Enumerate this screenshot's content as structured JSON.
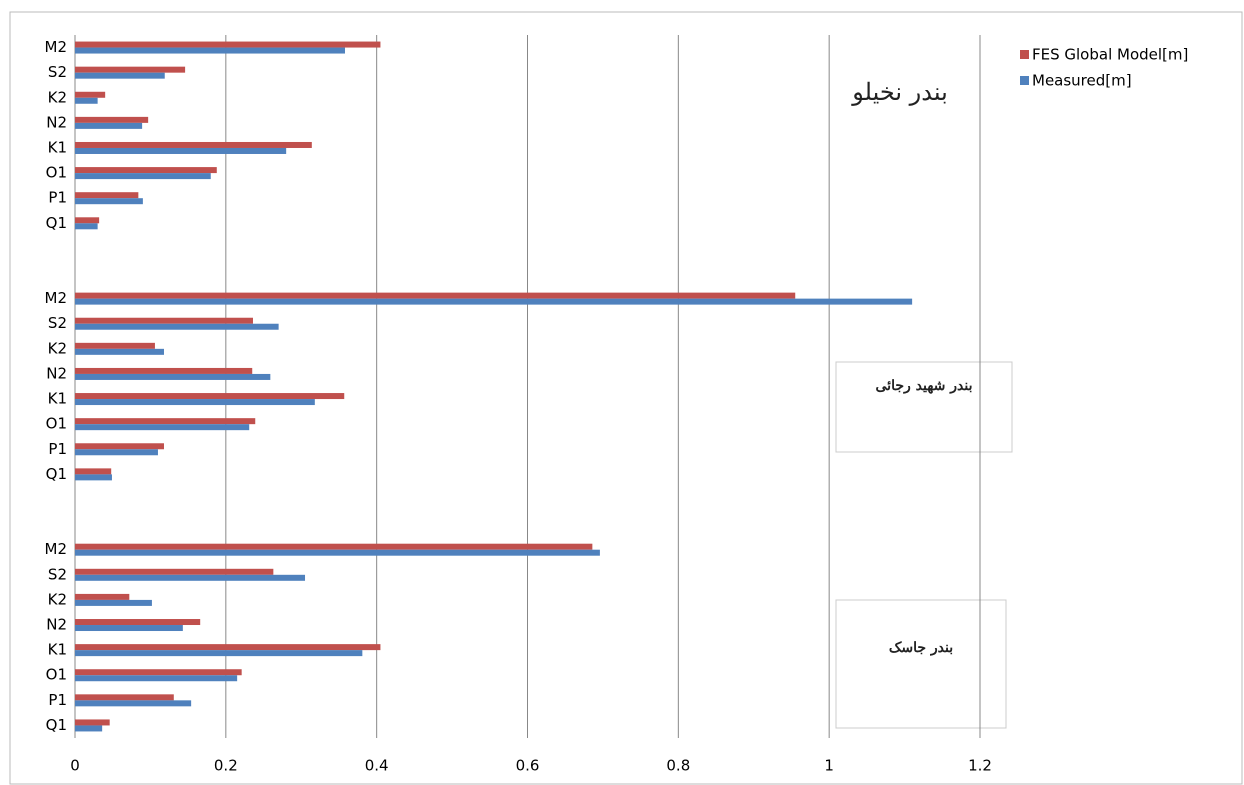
{
  "chart_data": {
    "type": "hbar",
    "categories": [
      "M2",
      "S2",
      "K2",
      "N2",
      "K1",
      "O1",
      "P1",
      "Q1",
      null,
      null,
      "M2",
      "S2",
      "K2",
      "N2",
      "K1",
      "O1",
      "P1",
      "Q1",
      null,
      null,
      "M2",
      "S2",
      "K2",
      "N2",
      "K1",
      "O1",
      "P1",
      "Q1"
    ],
    "series": [
      {
        "name": "FES Global Model[m]",
        "color": "#c0504d",
        "values": [
          0.405,
          0.146,
          0.04,
          0.097,
          0.314,
          0.188,
          0.084,
          0.032,
          null,
          null,
          0.955,
          0.236,
          0.106,
          0.235,
          0.357,
          0.239,
          0.118,
          0.048,
          null,
          null,
          0.686,
          0.263,
          0.072,
          0.166,
          0.405,
          0.221,
          0.131,
          0.046
        ]
      },
      {
        "name": "Measured[m]",
        "color": "#4f81bd",
        "values": [
          0.358,
          0.119,
          0.03,
          0.089,
          0.28,
          0.18,
          0.09,
          0.03,
          null,
          null,
          1.11,
          0.27,
          0.118,
          0.259,
          0.318,
          0.231,
          0.11,
          0.049,
          null,
          null,
          0.696,
          0.305,
          0.102,
          0.143,
          0.381,
          0.215,
          0.154,
          0.036
        ]
      }
    ],
    "xlim": [
      0,
      1.2
    ],
    "xticks": [
      0,
      0.2,
      0.4,
      0.6,
      0.8,
      1,
      1.2
    ],
    "grid": true,
    "annotations": [
      "بندر نخیلو",
      "بندر شهید رجائی",
      "بندر جاسک"
    ]
  }
}
